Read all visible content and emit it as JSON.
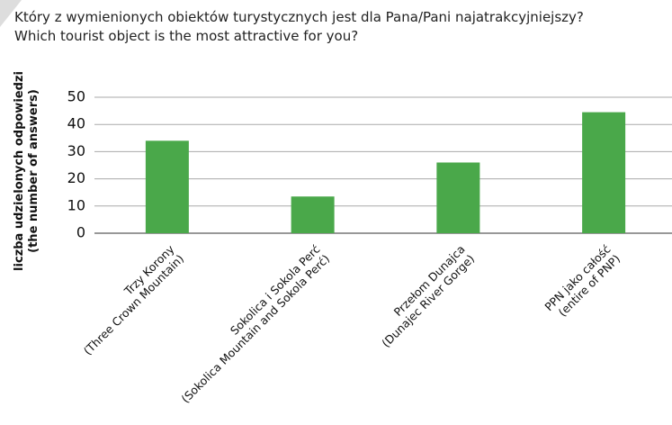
{
  "chart_data": {
    "type": "bar",
    "title": "Który z wymienionych obiektów turystycznych jest dla Pana/Pani najatrakcyjniejszy?",
    "subtitle": "Which tourist object is the most attractive for you?",
    "y_label": "liczba udzielonych odpowiedzi\n(the number  of answers)",
    "categories": [
      "Trzy Korony\n(Three Crown Mountain)",
      "Sokolica i Sokola Perć\n(Sokolica Mountain and Sokola Perć)",
      "Przełom Dunajca\n(Dunajec River Gorge)",
      "PPN jako całość\n(entire of PNP)"
    ],
    "values": [
      34,
      13.5,
      26,
      44.5
    ],
    "color": "#4aa84a",
    "ylim": [
      0,
      50
    ],
    "yticks": [
      0,
      10,
      20,
      30,
      40,
      50
    ],
    "grid": true
  }
}
